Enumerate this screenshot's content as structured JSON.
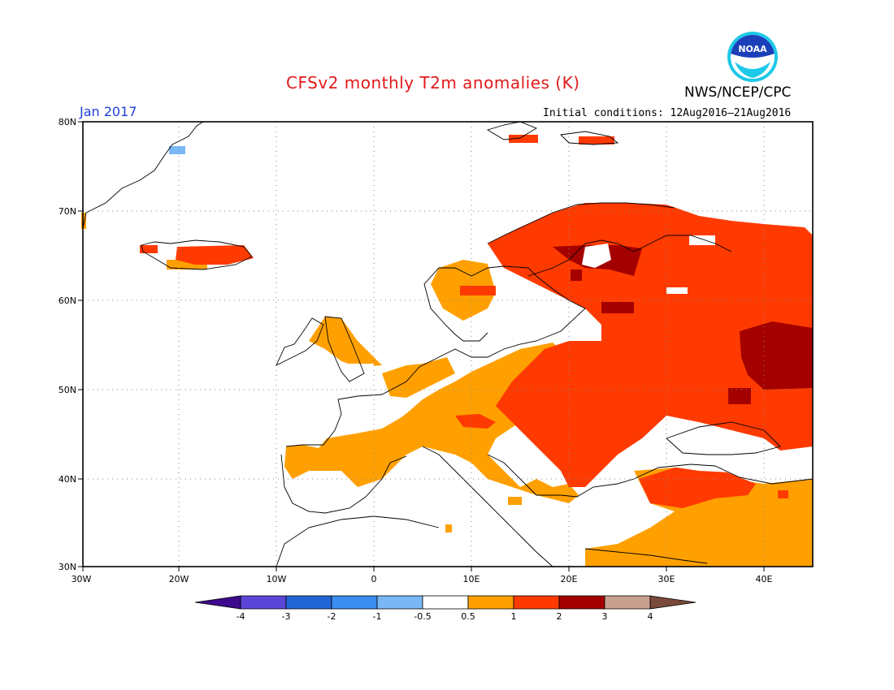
{
  "header": {
    "title": "CFSv2 monthly T2m anomalies (K)",
    "agency": "NWS/NCEP/CPC",
    "valid_month": "Jan 2017",
    "initial_conditions": "Initial conditions: 12Aug2016–21Aug2016",
    "logo_text": "NOAA"
  },
  "map": {
    "lon_labels": [
      "30W",
      "20W",
      "10W",
      "0",
      "10E",
      "20E",
      "30E",
      "40E"
    ],
    "lat_labels": [
      "80N",
      "70N",
      "60N",
      "50N",
      "40N",
      "30N"
    ]
  },
  "colorbar": {
    "tick_labels": [
      "-4",
      "-3",
      "-2",
      "-1",
      "-0.5",
      "0.5",
      "1",
      "2",
      "3",
      "4"
    ],
    "bins": [
      {
        "color": "#3d0a8c"
      },
      {
        "color": "#5b46d8"
      },
      {
        "color": "#2266d6"
      },
      {
        "color": "#3a8ef0"
      },
      {
        "color": "#7ab8f5"
      },
      {
        "color": "#ffffff"
      },
      {
        "color": "#ffa000"
      },
      {
        "color": "#ff3a00"
      },
      {
        "color": "#a50000"
      },
      {
        "color": "#c8a090"
      },
      {
        "color": "#7a4a3a"
      }
    ]
  }
}
